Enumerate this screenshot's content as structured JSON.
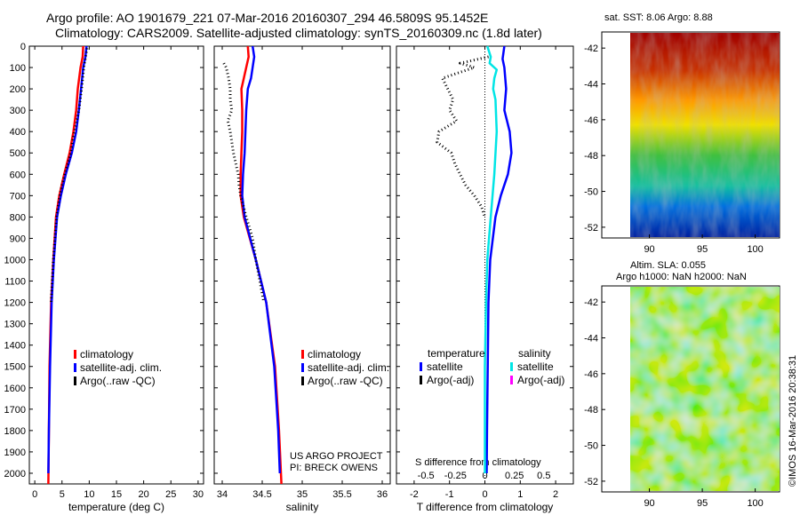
{
  "header": {
    "line1": "Argo profile: AO 1901679_221 07-Mar-2016 20160307_294 46.5809S 95.1452E",
    "line2": "Climatology: CARS2009. Satellite-adjusted climatology: synTS_20160309.nc (1.8d later)"
  },
  "maps": {
    "sst_label": "sat. SST: 8.06 Argo: 8.88",
    "sla_label": "Altim. SLA: 0.055",
    "h_label": "Argo h1000: NaN h2000: NaN",
    "lat_ticks": [
      "-42",
      "-44",
      "-46",
      "-48",
      "-50",
      "-52"
    ],
    "lon_ticks": [
      "90",
      "95",
      "100"
    ]
  },
  "credits": {
    "project": "US ARGO PROJECT",
    "pi": "PI: BRECK OWENS",
    "stamp": "©IMOS 16-Mar-2016 20:38:31"
  },
  "colors": {
    "climatology": "#ff0000",
    "satellite_adj": "#0000ff",
    "argo": "#000000",
    "sal_satellite": "#00e5e5",
    "sal_argo": "#ff00ff"
  },
  "chart_data": [
    {
      "type": "line",
      "name": "temperature",
      "xlabel": "temperature (deg C)",
      "ylabel": "",
      "xlim": [
        -1,
        31
      ],
      "ylim": [
        2050,
        0
      ],
      "xticks": [
        0,
        5,
        10,
        15,
        20,
        25,
        30
      ],
      "yticks": [
        0,
        100,
        200,
        300,
        400,
        500,
        600,
        700,
        800,
        900,
        1000,
        1100,
        1200,
        1300,
        1400,
        1500,
        1600,
        1700,
        1800,
        1900,
        2000
      ],
      "legend": [
        "climatology",
        "satellite-adj. clim.",
        "Argo(..raw -QC)"
      ],
      "series": [
        {
          "name": "climatology",
          "depth": [
            0,
            50,
            100,
            200,
            300,
            400,
            500,
            600,
            700,
            800,
            1000,
            1200,
            1500,
            1800,
            2050
          ],
          "values": [
            8.9,
            8.8,
            8.4,
            7.9,
            7.6,
            7.1,
            6.4,
            5.4,
            4.5,
            3.9,
            3.4,
            3.0,
            2.7,
            2.6,
            2.5
          ]
        },
        {
          "name": "satellite-adj. clim.",
          "depth": [
            0,
            50,
            100,
            200,
            300,
            400,
            500,
            600,
            700,
            800,
            1000,
            1200,
            1500,
            1800,
            2000
          ],
          "values": [
            9.5,
            9.3,
            8.9,
            8.5,
            8.1,
            7.6,
            6.8,
            5.7,
            4.8,
            4.1,
            3.5,
            3.1,
            2.8,
            2.6,
            2.5
          ]
        },
        {
          "name": "Argo(..raw -QC)",
          "depth": [
            10,
            100,
            200,
            300,
            400,
            450,
            500,
            550,
            600,
            650,
            700,
            800,
            900,
            1000,
            1100,
            1200
          ],
          "values": [
            9.6,
            9.0,
            8.6,
            8.1,
            7.3,
            6.9,
            6.6,
            6.1,
            5.5,
            5.0,
            4.6,
            4.0,
            3.7,
            3.4,
            3.2,
            3.0
          ]
        }
      ]
    },
    {
      "type": "line",
      "name": "salinity",
      "xlabel": "salinity",
      "xlim": [
        33.9,
        36.1
      ],
      "ylim": [
        2050,
        0
      ],
      "xticks": [
        34,
        34.5,
        35,
        35.5,
        36
      ],
      "legend": [
        "climatology",
        "satellite-adj. clim.",
        "Argo(..raw -QC)"
      ],
      "series": [
        {
          "name": "climatology",
          "depth": [
            0,
            50,
            100,
            150,
            200,
            300,
            400,
            500,
            600,
            700,
            800,
            1000,
            1200,
            1500,
            1800,
            2050
          ],
          "values": [
            34.32,
            34.33,
            34.3,
            34.27,
            34.24,
            34.25,
            34.25,
            34.24,
            34.23,
            34.23,
            34.27,
            34.42,
            34.55,
            34.66,
            34.71,
            34.74
          ]
        },
        {
          "name": "satellite-adj. clim.",
          "depth": [
            0,
            50,
            100,
            150,
            200,
            300,
            400,
            500,
            600,
            700,
            800,
            1000,
            1200,
            1500,
            1800,
            2000
          ],
          "values": [
            34.38,
            34.4,
            34.38,
            34.36,
            34.32,
            34.3,
            34.29,
            34.28,
            34.26,
            34.25,
            34.28,
            34.42,
            34.55,
            34.65,
            34.7,
            34.72
          ]
        },
        {
          "name": "Argo(..raw -QC)",
          "depth": [
            80,
            100,
            150,
            200,
            250,
            300,
            350,
            400,
            450,
            500,
            550,
            600,
            650,
            700,
            800,
            900,
            1000,
            1100,
            1200
          ],
          "values": [
            34.02,
            34.05,
            34.08,
            34.1,
            34.1,
            34.12,
            34.07,
            34.1,
            34.12,
            34.14,
            34.17,
            34.2,
            34.21,
            34.23,
            34.3,
            34.38,
            34.42,
            34.47,
            34.52
          ]
        }
      ]
    },
    {
      "type": "line",
      "name": "difference from climatology",
      "xlabel": "T difference from climatology",
      "x2label": "S difference from climatology",
      "xlim": [
        -2.5,
        2.5
      ],
      "x2lim": [
        -0.75,
        0.75
      ],
      "ylim": [
        2050,
        0
      ],
      "xticks": [
        -2,
        -1,
        0,
        1,
        2
      ],
      "x2ticks": [
        "-0.5",
        "-0.25",
        "0",
        "0.25",
        "0.5"
      ],
      "legend_temperature_title": "temperature",
      "legend_salinity_title": "salinity",
      "legend_temperature": [
        "satellite",
        "Argo(-adj)"
      ],
      "legend_salinity": [
        "satellite",
        "Argo(-adj)"
      ],
      "series": [
        {
          "name": "temperature satellite",
          "axis": "T",
          "depth": [
            0,
            60,
            100,
            200,
            300,
            400,
            500,
            600,
            700,
            800,
            1000,
            1200,
            1500,
            1800,
            2000
          ],
          "values": [
            0.55,
            0.5,
            0.55,
            0.6,
            0.55,
            0.7,
            0.75,
            0.65,
            0.45,
            0.3,
            0.15,
            0.1,
            0.08,
            0.06,
            0.05
          ]
        },
        {
          "name": "salinity satellite",
          "axis": "S",
          "depth": [
            0,
            50,
            80,
            110,
            150,
            200,
            250,
            400,
            600,
            800,
            1000,
            1200,
            1500,
            1800,
            2000
          ],
          "values": [
            0.02,
            0.05,
            0.04,
            0.1,
            0.08,
            0.07,
            0.09,
            0.1,
            0.08,
            0.05,
            0.02,
            0.01,
            0.0,
            0.0,
            0.0
          ]
        },
        {
          "name": "temperature Argo(-adj)",
          "axis": "T",
          "depth": [
            50,
            80,
            100,
            150,
            200,
            250,
            300,
            350,
            400,
            450,
            500,
            550,
            600,
            650,
            700,
            750,
            800
          ],
          "values": [
            0.1,
            -0.7,
            -0.3,
            -1.2,
            -1.05,
            -0.9,
            -1.0,
            -0.8,
            -1.3,
            -1.35,
            -0.95,
            -0.85,
            -0.7,
            -0.55,
            -0.3,
            -0.1,
            0.0
          ]
        }
      ]
    }
  ]
}
